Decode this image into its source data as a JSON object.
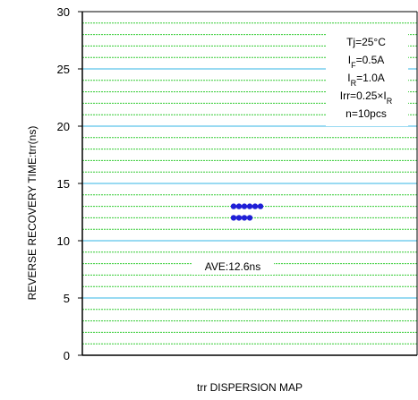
{
  "chart_data": {
    "type": "scatter",
    "xlabel": "trr DISPERSION MAP",
    "ylabel": "REVERSE RECOVERY TIME:trr(ns)",
    "ylim": [
      0,
      30
    ],
    "yticks": [
      0,
      5,
      10,
      15,
      20,
      25,
      30
    ],
    "grid": {
      "major_step": 5,
      "minor_step": 1
    },
    "points": [
      12,
      12,
      12,
      12,
      13,
      13,
      13,
      13,
      13,
      13
    ],
    "annotations": {
      "average": "AVE:12.6ns",
      "conditions": [
        {
          "main": "Tj=25°C",
          "sub": "",
          "rest": ""
        },
        {
          "main": "I",
          "sub": "F",
          "rest": "=0.5A"
        },
        {
          "main": "I",
          "sub": "R",
          "rest": "=1.0A"
        },
        {
          "main": "Irr=0.25×I",
          "sub": "R",
          "rest": ""
        },
        {
          "main": "n=10pcs",
          "sub": "",
          "rest": ""
        }
      ]
    },
    "colors": {
      "major_grid": "#33b5e5",
      "minor_grid": "#33cc33",
      "points": "#1f1fd6",
      "axes": "#000000"
    }
  }
}
